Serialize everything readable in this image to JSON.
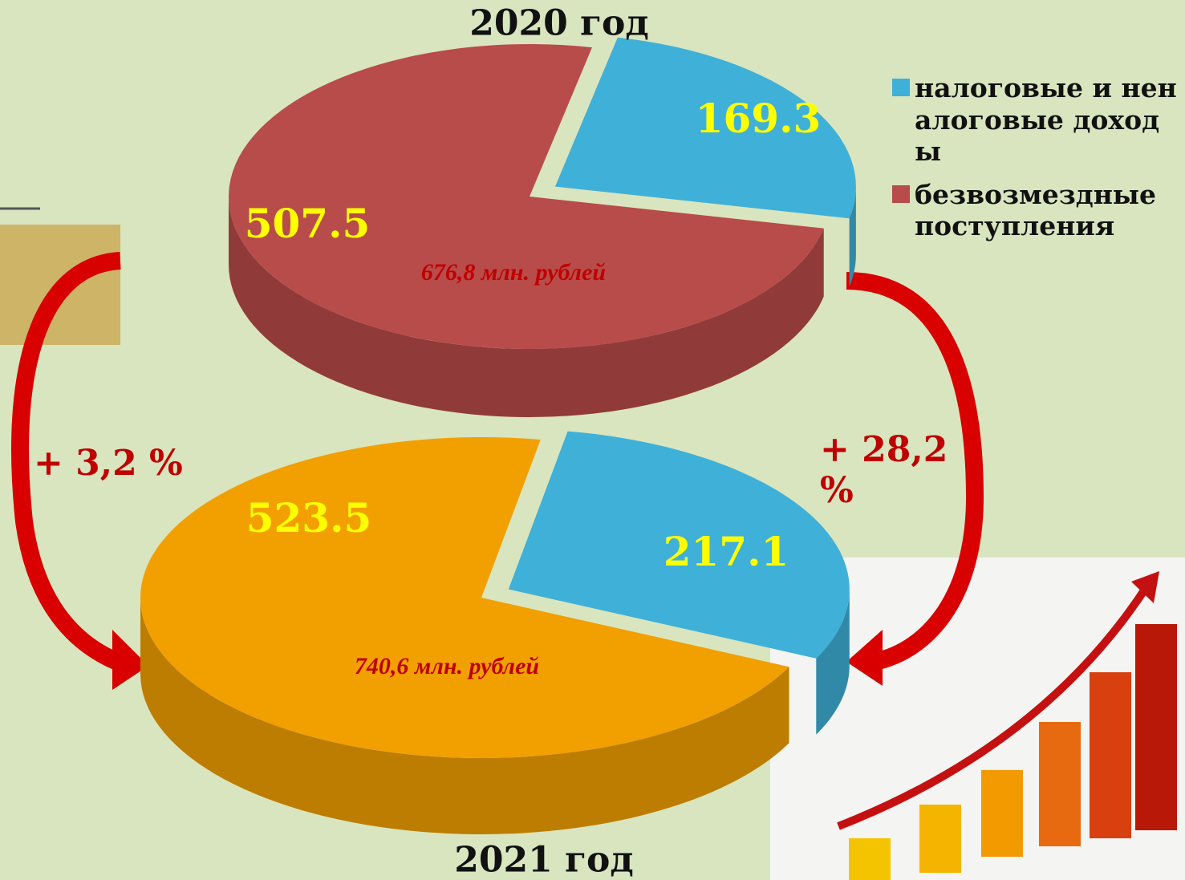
{
  "chart_data": [
    {
      "type": "pie",
      "title": "2020 год",
      "categories": [
        "налоговые и неналоговые доходы",
        "безвозмездные поступления"
      ],
      "values": [
        169.3,
        507.5
      ],
      "colors": [
        "#3fb0d8",
        "#b84c4a"
      ],
      "annotation": "676,8 млн. рублей"
    },
    {
      "type": "pie",
      "title": "2021 год",
      "values": [
        217.1,
        523.5
      ],
      "colors": [
        "#3fb0d8",
        "#f2a000"
      ],
      "annotation": "740,6 млн. рублей",
      "annotations": [
        "+ 3,2 %",
        "+ 28,2 %"
      ]
    }
  ]
}
